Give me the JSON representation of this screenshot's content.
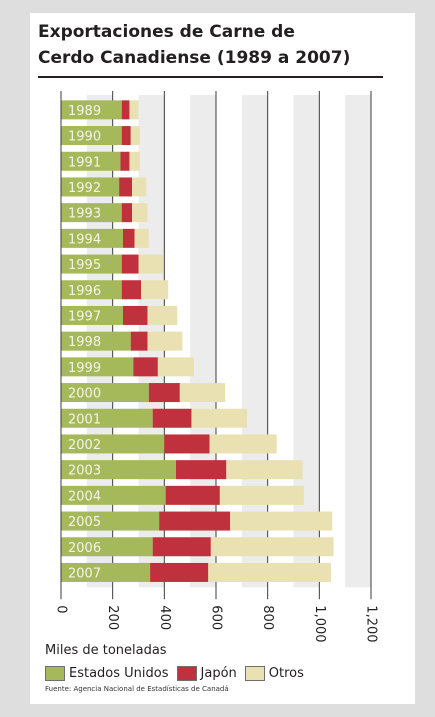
{
  "title": {
    "line1": "Exportaciones de Carne de",
    "line2": "Cerdo Canadiense  (1989 a 2007)"
  },
  "unit_label": "Miles de toneladas",
  "source": "Fuente: Agencia Nacional de Estadísticas de Canadá",
  "colors": {
    "estados_unidos": "#a5b85a",
    "japon": "#c0313e",
    "otros": "#e9e1b2",
    "label_text": "#f4f4ea",
    "grid": "#3c3c3c",
    "shade": "#ececec"
  },
  "chart_data": {
    "type": "bar",
    "orientation": "horizontal",
    "stacked": true,
    "categories": [
      "1989",
      "1990",
      "1991",
      "1992",
      "1993",
      "1994",
      "1995",
      "1996",
      "1997",
      "1998",
      "1999",
      "2000",
      "2001",
      "2002",
      "2003",
      "2004",
      "2005",
      "2006",
      "2007"
    ],
    "series": [
      {
        "name": "Estados Unidos",
        "values": [
          235,
          235,
          230,
          225,
          235,
          240,
          235,
          235,
          240,
          270,
          280,
          340,
          355,
          400,
          445,
          405,
          380,
          355,
          345
        ]
      },
      {
        "name": "Japón",
        "values": [
          30,
          35,
          35,
          50,
          40,
          45,
          65,
          75,
          95,
          65,
          95,
          120,
          150,
          175,
          195,
          210,
          275,
          225,
          225
        ]
      },
      {
        "name": "Otros",
        "values": [
          35,
          35,
          40,
          55,
          60,
          55,
          95,
          105,
          115,
          135,
          140,
          175,
          215,
          260,
          295,
          325,
          395,
          475,
          475
        ]
      }
    ],
    "xlim": [
      0,
      1200
    ],
    "x_ticks": [
      "0",
      "200",
      "400",
      "600",
      "800",
      "1,000",
      "1,200"
    ],
    "xlabel": "Miles de toneladas",
    "grid": true,
    "legend_position": "bottom"
  }
}
